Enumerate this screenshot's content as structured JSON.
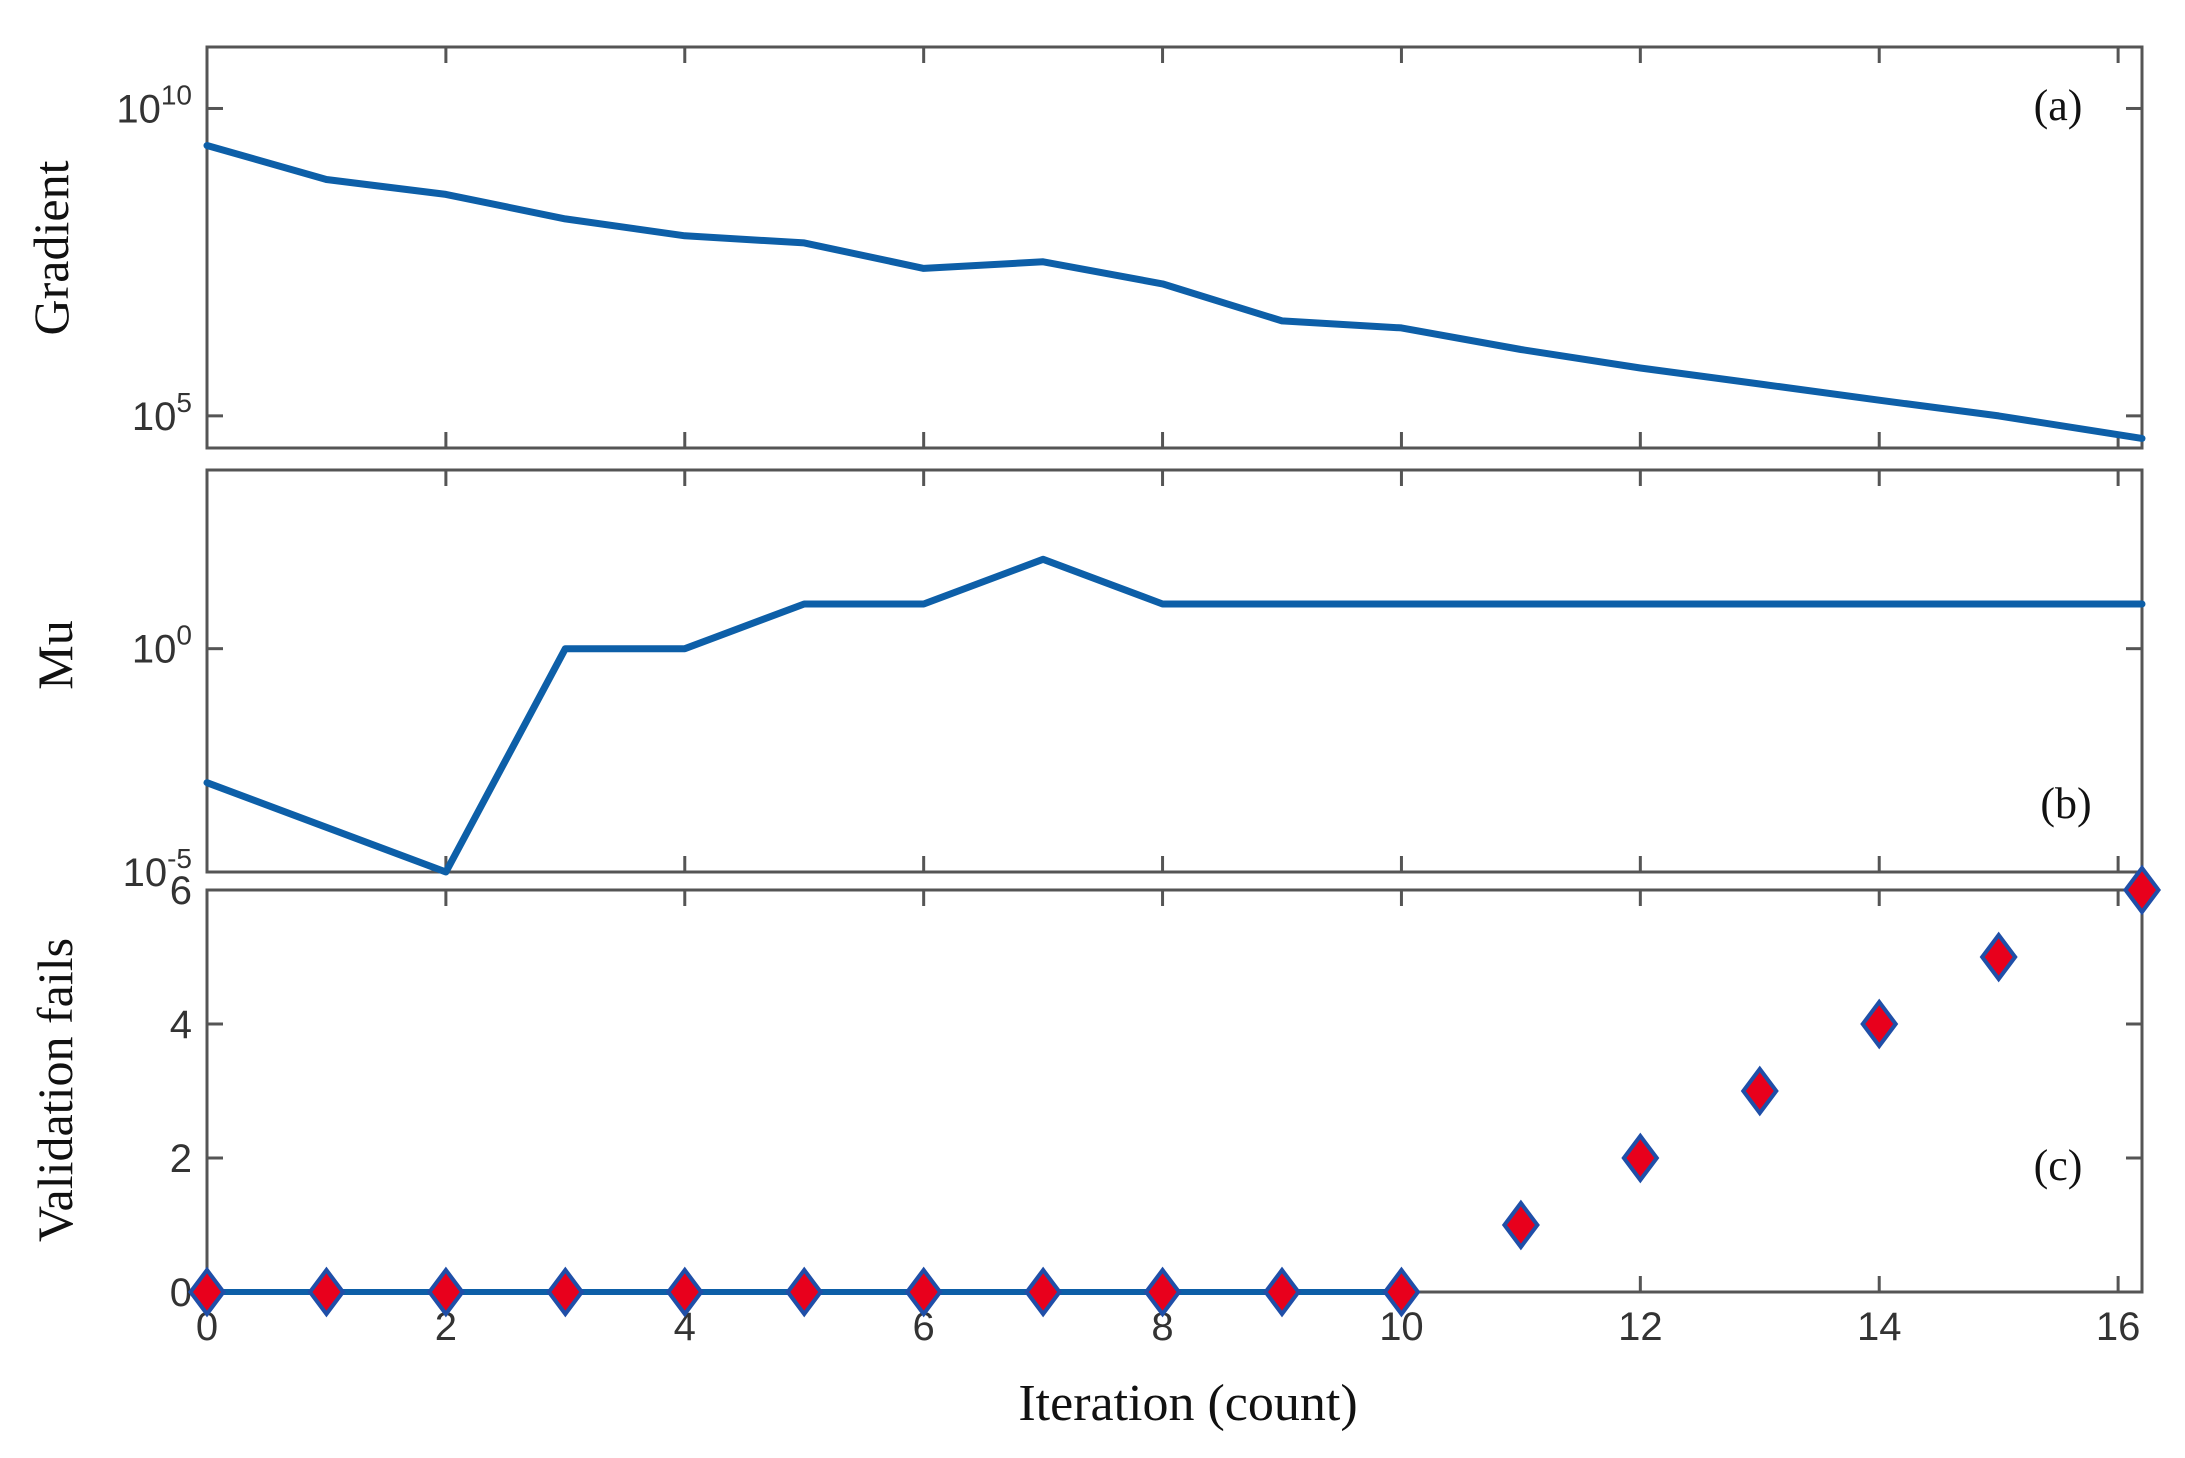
{
  "chart_data": [
    {
      "type": "line",
      "panel_label": "(a)",
      "ylabel": "Gradient",
      "yscale": "log",
      "ylim": [
        30000,
        100000000000
      ],
      "xlim": [
        0,
        16.2
      ],
      "yticks": [
        {
          "value": 100000,
          "base": "10",
          "exp": "5"
        },
        {
          "value": 10000000000,
          "base": "10",
          "exp": "10"
        }
      ],
      "series": [
        {
          "color": "#0d5fa8",
          "x": [
            0,
            1,
            2,
            3,
            4,
            5,
            6,
            7,
            8,
            9,
            10,
            11,
            12,
            13,
            14,
            15,
            16.2
          ],
          "y": [
            2500000000.0,
            700000000.0,
            400000000.0,
            160000000.0,
            85000000.0,
            65000000.0,
            25000000.0,
            32000000.0,
            14000000.0,
            3500000.0,
            2700000.0,
            1200000.0,
            600000.0,
            330000.0,
            180000.0,
            100000.0,
            43000.0
          ]
        }
      ]
    },
    {
      "type": "line",
      "panel_label": "(b)",
      "ylabel": "Mu",
      "yscale": "log",
      "ylim": [
        1e-05,
        10000
      ],
      "xlim": [
        0,
        16.2
      ],
      "yticks": [
        {
          "value": 1,
          "base": "10",
          "exp": "0"
        },
        {
          "value": 1e-05,
          "base": "10",
          "exp": "-5"
        }
      ],
      "series": [
        {
          "color": "#0d5fa8",
          "x": [
            0,
            2,
            3,
            4,
            5,
            6,
            7,
            8,
            16.2
          ],
          "y": [
            0.001,
            1e-05,
            1,
            1,
            10,
            10,
            100,
            10,
            10
          ]
        }
      ]
    },
    {
      "type": "scatter",
      "panel_label": "(c)",
      "ylabel": "Validation fails",
      "xlabel": "Iteration (count)",
      "ylim": [
        0,
        6
      ],
      "xlim": [
        0,
        16.2
      ],
      "yticks": [
        0,
        2,
        4,
        6
      ],
      "xticks": [
        0,
        2,
        4,
        6,
        8,
        10,
        12,
        14,
        16
      ],
      "marker": {
        "shape": "diamond",
        "fill": "#e8001c",
        "edge": "#1f4fa8"
      },
      "line_color": "#0d5fa8",
      "x": [
        0,
        1,
        2,
        3,
        4,
        5,
        6,
        7,
        8,
        9,
        10,
        11,
        12,
        13,
        14,
        15,
        16.2
      ],
      "y": [
        0,
        0,
        0,
        0,
        0,
        0,
        0,
        0,
        0,
        0,
        0,
        1,
        2,
        3,
        4,
        5,
        6
      ]
    }
  ]
}
